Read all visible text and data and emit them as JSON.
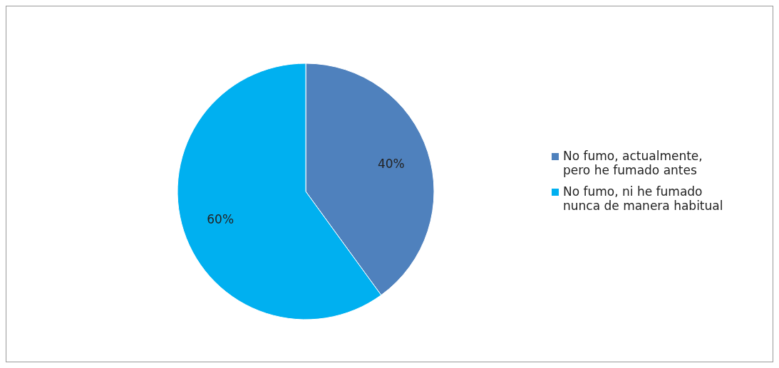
{
  "chart_data": {
    "type": "pie",
    "categories": [
      "No fumo, actualmente, pero he fumado antes",
      "No fumo, ni he fumado nunca de manera habitual"
    ],
    "values": [
      40,
      60
    ],
    "colors": [
      "#4f81bd",
      "#00b0f0"
    ],
    "value_labels": [
      "40%",
      "60%"
    ],
    "legend": "right"
  }
}
